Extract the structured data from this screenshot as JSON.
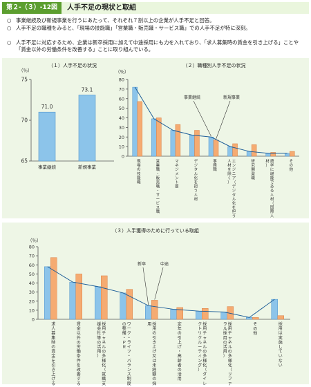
{
  "figure": {
    "label": "第２-（３）-12図",
    "title": "人手不足の現状と取組"
  },
  "bullets": [
    {
      "mark": "○",
      "text": "事業継続及び新規事業を行うにあたって、それぞれ７割以上の企業が人手不足と回答。"
    },
    {
      "mark": "○",
      "text": "人手不足の職種をみると、「現場の技能職」「営業職・販売職・サービス職」での人手不足が特に深刻。"
    },
    {
      "mark": "○",
      "text": "人手不足に対応するため、企業は新卒採用に加えて中途採用にも力を入れており、「求人募集時の賃金を引き上げる」ことや「賃金以外の労働条件を改善する」ことに取り組んでいる。"
    }
  ],
  "colors": {
    "panel_bg": "#eef6e6",
    "header_bg": "#eaf6dd",
    "label_bg": "#5c9e2f",
    "blue": "#8cc4ea",
    "blue_stroke": "#4f94cc",
    "orange": "#f5ab72",
    "orange_stroke": "#d98045",
    "line": "#1f5f99"
  },
  "chart_data": [
    {
      "type": "bar",
      "title": "（１）人手不足の状況",
      "ylabel": "（％）",
      "ylim": [
        65,
        75
      ],
      "yticks": [
        65,
        70,
        75
      ],
      "categories": [
        "事業継続",
        "新規事業"
      ],
      "values": [
        71.0,
        73.1
      ],
      "value_labels": [
        "71.0",
        "73.1"
      ],
      "grid": false
    },
    {
      "type": "bar",
      "title": "（２）職種別人手不足の状況",
      "ylabel": "（％）",
      "ylim": [
        0,
        80
      ],
      "yticks": [
        0,
        10,
        20,
        30,
        40,
        50,
        60,
        70,
        80
      ],
      "categories": [
        "現場の技能職",
        "営業職・販売職・サービス職",
        "マネジメント層",
        "デジタル化を担う人材",
        "事務職",
        "エンジニア（デジタル化を担う人材を除く）",
        "研究開発職",
        "語学に堪能である人材（国際人材）",
        "その他"
      ],
      "series": [
        {
          "name": "事業継続",
          "color": "blue",
          "values": [
            72,
            39,
            27,
            22,
            20,
            10,
            5,
            3,
            3
          ]
        },
        {
          "name": "新規事業",
          "color": "orange",
          "values": [
            57,
            40,
            33,
            27,
            17,
            13,
            12,
            4,
            5
          ]
        }
      ],
      "line_series": "事業継続",
      "legend": "callouts",
      "grid": false
    },
    {
      "type": "bar",
      "title": "（３）人手獲得のために行っている取組",
      "ylabel": "（％）",
      "ylim": [
        0,
        80
      ],
      "yticks": [
        0,
        10,
        20,
        30,
        40,
        50,
        60,
        70,
        80
      ],
      "categories": [
        "求人募集時の賃金を引き上げる",
        "賃金以外の労働条件を改善する",
        "採用チャネルの多様化（就職支援会社等の活用）",
        "ワーク・ライフ・バランス制度の整備・ＰＲ",
        "採用の引き上げ又は未経験の採用",
        "定年の引上げ・高齢者の活用",
        "採用チャネルの多様化（ダイレクトリクルーティング）",
        "採用チャネルの多様化（リファラル採用の活用）",
        "その他",
        "採用は実施していない"
      ],
      "series": [
        {
          "name": "新卒",
          "color": "blue",
          "values": [
            58,
            41,
            36,
            29,
            15,
            11,
            9,
            8,
            2,
            22
          ]
        },
        {
          "name": "中途",
          "color": "orange",
          "values": [
            68,
            50,
            48,
            33,
            21,
            13,
            12,
            14,
            2,
            4
          ]
        }
      ],
      "line_series": "新卒",
      "legend": "callouts",
      "grid": false
    }
  ]
}
